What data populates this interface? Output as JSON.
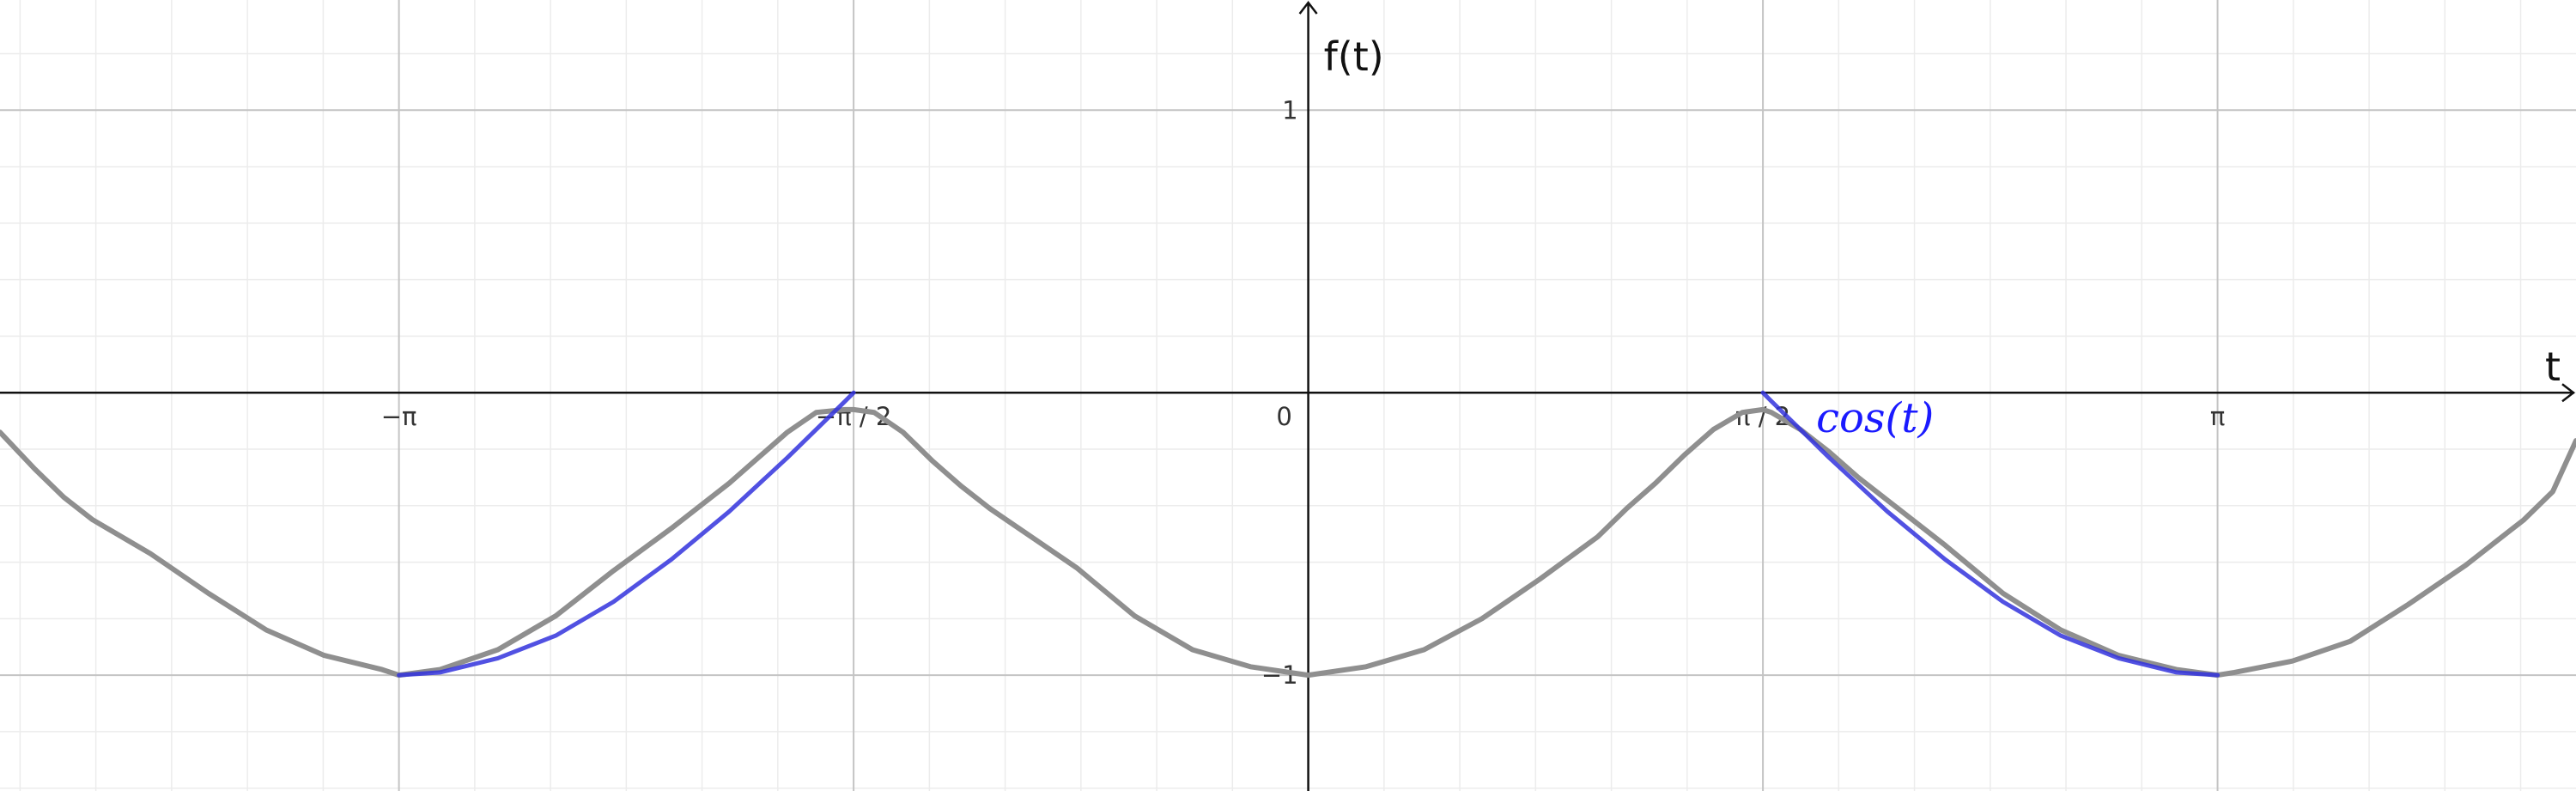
{
  "chart_data": {
    "type": "line",
    "xlabel": "t",
    "ylabel": "f(t)",
    "xlim": [
      -4.52,
      4.38
    ],
    "ylim": [
      -1.41,
      1.39
    ],
    "grid": true,
    "x_ticks": [
      {
        "value": -3.14159,
        "label": "−π"
      },
      {
        "value": -1.5708,
        "label": "−π / 2"
      },
      {
        "value": 1.5708,
        "label": "π / 2"
      },
      {
        "value": 3.14159,
        "label": "π"
      }
    ],
    "y_ticks": [
      {
        "value": 1,
        "label": "1"
      },
      {
        "value": -1,
        "label": "−1"
      }
    ],
    "origin_label": "0",
    "series": [
      {
        "name": "",
        "color": "#8f8f8f",
        "description_points": "piecewise-smooth periodic curve, period π",
        "x": [
          -4.52,
          -4.4,
          -4.3,
          -4.2,
          -4.0,
          -3.8,
          -3.6,
          -3.4,
          -3.2,
          -3.14159,
          -3.0,
          -2.8,
          -2.6,
          -2.4,
          -2.2,
          -2.0,
          -1.9,
          -1.8,
          -1.7,
          -1.6,
          -1.5708,
          -1.5,
          -1.4,
          -1.3,
          -1.2,
          -1.1,
          -1.0,
          -0.8,
          -0.6,
          -0.4,
          -0.2,
          0.0,
          0.2,
          0.4,
          0.6,
          0.8,
          1.0,
          1.1,
          1.2,
          1.3,
          1.4,
          1.5,
          1.5708,
          1.6,
          1.7,
          1.8,
          1.9,
          2.0,
          2.2,
          2.4,
          2.6,
          2.8,
          3.0,
          3.14159,
          3.2,
          3.4,
          3.6,
          3.8,
          4.0,
          4.1,
          4.2,
          4.3,
          4.38
        ],
        "y": [
          -0.14,
          -0.27,
          -0.37,
          -0.45,
          -0.57,
          -0.71,
          -0.84,
          -0.93,
          -0.98,
          -1.0,
          -0.98,
          -0.91,
          -0.79,
          -0.63,
          -0.48,
          -0.32,
          -0.23,
          -0.14,
          -0.07,
          -0.06,
          -0.06,
          -0.07,
          -0.14,
          -0.24,
          -0.33,
          -0.41,
          -0.48,
          -0.62,
          -0.79,
          -0.91,
          -0.97,
          -1.0,
          -0.97,
          -0.91,
          -0.8,
          -0.66,
          -0.51,
          -0.41,
          -0.32,
          -0.22,
          -0.13,
          -0.07,
          -0.06,
          -0.07,
          -0.13,
          -0.21,
          -0.3,
          -0.38,
          -0.54,
          -0.71,
          -0.84,
          -0.93,
          -0.98,
          -1.0,
          -0.99,
          -0.95,
          -0.88,
          -0.75,
          -0.61,
          -0.53,
          -0.45,
          -0.35,
          -0.17
        ]
      },
      {
        "name": "cos(t)",
        "color": "#3333dd",
        "x": [
          -3.14159,
          -3.0,
          -2.8,
          -2.6,
          -2.4,
          -2.2,
          -2.0,
          -1.8,
          -1.6,
          -1.5708
        ],
        "y": [
          -1.0,
          -0.99,
          -0.94,
          -0.86,
          -0.74,
          -0.59,
          -0.42,
          -0.23,
          -0.03,
          0.0
        ]
      },
      {
        "name": "",
        "color": "#3333dd",
        "x": [
          1.5708,
          1.6,
          1.8,
          2.0,
          2.2,
          2.4,
          2.6,
          2.8,
          3.0,
          3.14159
        ],
        "y": [
          0.0,
          -0.03,
          -0.23,
          -0.42,
          -0.59,
          -0.74,
          -0.86,
          -0.94,
          -0.99,
          -1.0
        ]
      }
    ]
  }
}
